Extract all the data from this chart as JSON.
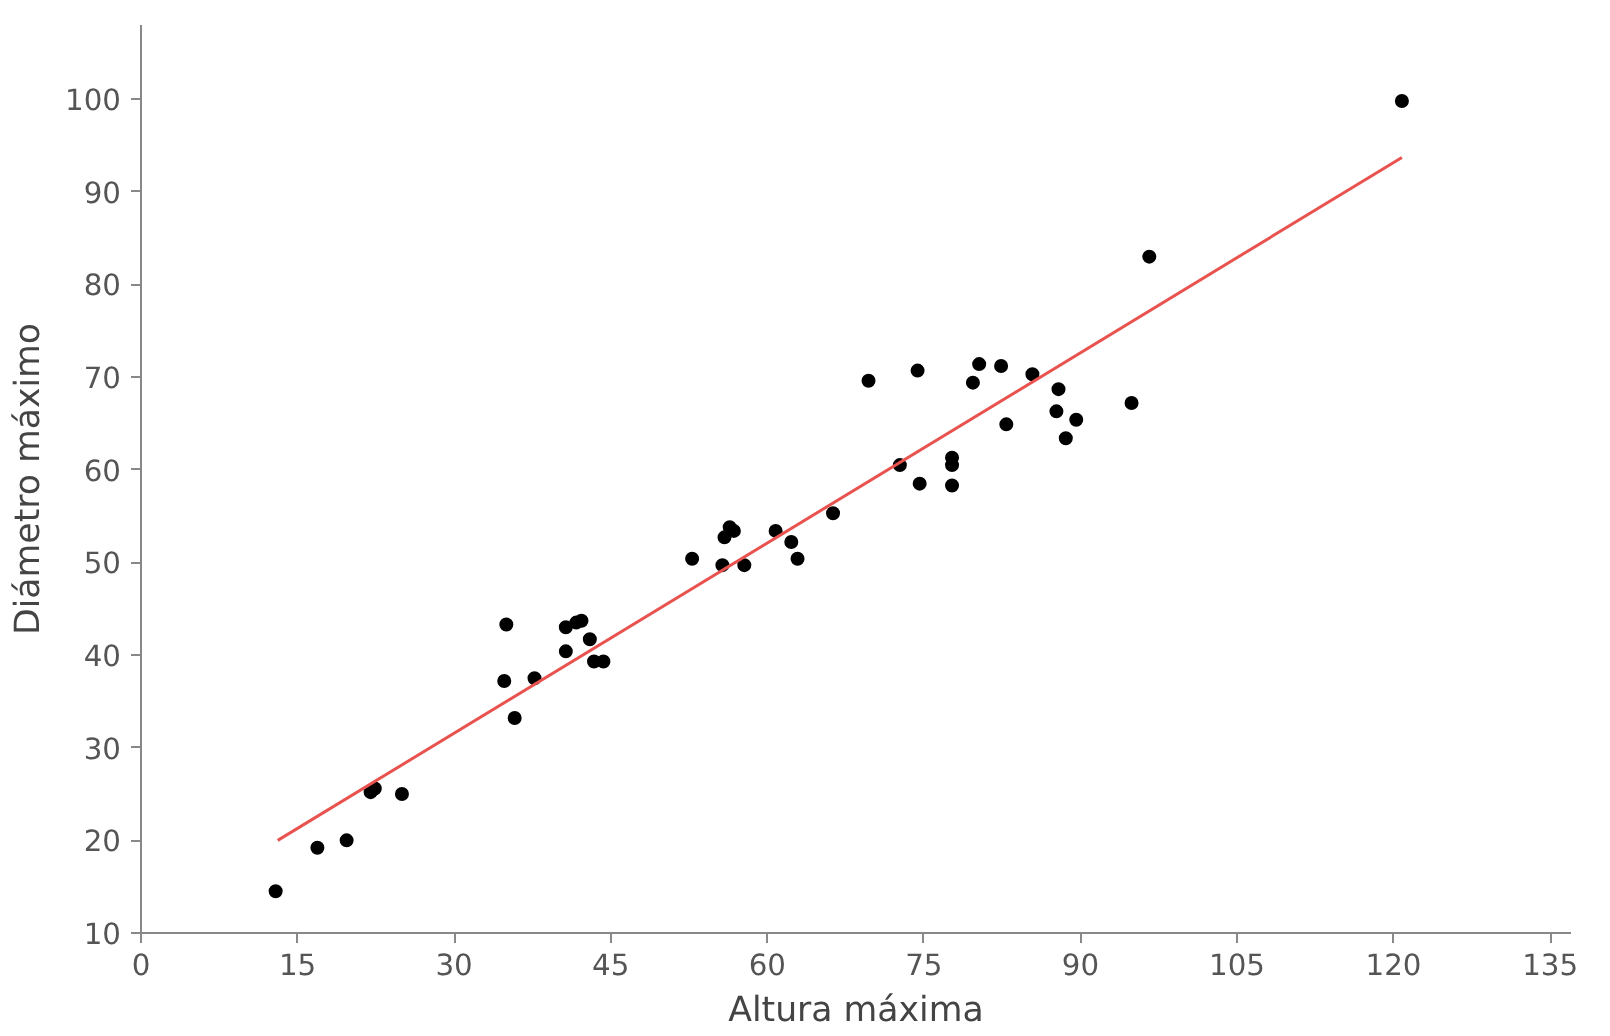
{
  "chart_data": {
    "type": "scatter",
    "xlabel": "Altura máxima",
    "ylabel": "Diámetro máximo",
    "xlim": [
      0,
      137
    ],
    "ylim": [
      10,
      108
    ],
    "xticks": [
      0,
      15,
      30,
      45,
      60,
      75,
      90,
      105,
      120,
      135
    ],
    "yticks": [
      10,
      20,
      30,
      40,
      50,
      60,
      70,
      80,
      90,
      100
    ],
    "grid": false,
    "marker": "circle",
    "series": [
      {
        "color": "#000000",
        "x": [
          12.9,
          16.9,
          19.7,
          22.0,
          22.4,
          25.0,
          35.0,
          34.8,
          35.8,
          37.7,
          40.7,
          40.7,
          41.7,
          42.2,
          43.0,
          43.4,
          44.3,
          52.8,
          55.7,
          55.9,
          56.4,
          56.8,
          57.8,
          60.8,
          62.3,
          62.9,
          66.3,
          69.7,
          74.4,
          80.3,
          79.7,
          82.4,
          85.4,
          87.9,
          87.7,
          89.6,
          88.6,
          82.9,
          72.7,
          77.7,
          77.7,
          74.6,
          77.7,
          94.9,
          96.6,
          120.8
        ],
        "values": [
          14.5,
          19.2,
          20.0,
          25.2,
          25.6,
          25.0,
          43.3,
          37.2,
          33.2,
          37.5,
          40.4,
          43.0,
          43.5,
          43.7,
          41.7,
          39.3,
          39.3,
          50.4,
          49.7,
          52.7,
          53.8,
          53.4,
          49.7,
          53.4,
          52.2,
          50.4,
          55.3,
          69.6,
          70.7,
          71.4,
          69.4,
          71.2,
          70.3,
          68.7,
          66.3,
          65.4,
          63.4,
          64.9,
          60.5,
          61.3,
          60.5,
          58.5,
          58.3,
          67.2,
          83.0,
          99.8
        ]
      },
      {
        "type": "line",
        "color": "#e8534f",
        "marker": "none",
        "x": [
          13.1,
          120.8
        ],
        "values": [
          20.0,
          93.7
        ]
      }
    ]
  }
}
